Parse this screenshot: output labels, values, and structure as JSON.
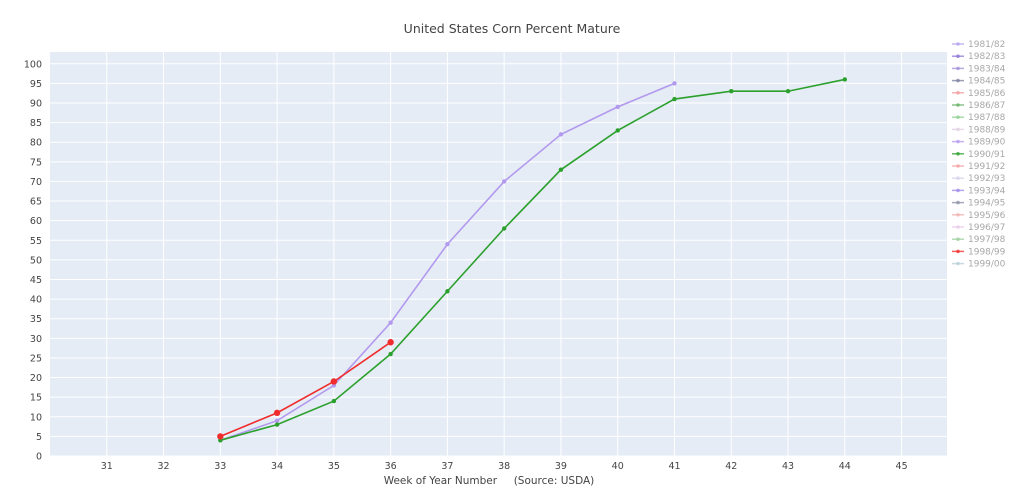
{
  "chart_data": {
    "type": "line",
    "title": "United States Corn Percent Mature",
    "xlabel": "Week of Year Number     (Source: USDA)",
    "ylabel": "",
    "xlim": [
      30,
      45.8
    ],
    "ylim": [
      0,
      103
    ],
    "xticks": [
      31,
      32,
      33,
      34,
      35,
      36,
      37,
      38,
      39,
      40,
      41,
      42,
      43,
      44,
      45
    ],
    "yticks": [
      0,
      5,
      10,
      15,
      20,
      25,
      30,
      35,
      40,
      45,
      50,
      55,
      60,
      65,
      70,
      75,
      80,
      85,
      90,
      95,
      100
    ],
    "grid": true,
    "legend_position": "right",
    "background": "#e5ecf6",
    "series": [
      {
        "name": "1981/82",
        "color": "#b59ff0",
        "visible": false,
        "x": [],
        "y": []
      },
      {
        "name": "1982/83",
        "color": "#8c73d6",
        "visible": false,
        "x": [],
        "y": []
      },
      {
        "name": "1983/84",
        "color": "#a08fd9",
        "visible": false,
        "x": [],
        "y": []
      },
      {
        "name": "1984/85",
        "color": "#7a7f9e",
        "visible": false,
        "x": [],
        "y": []
      },
      {
        "name": "1985/86",
        "color": "#f29a9a",
        "visible": false,
        "x": [],
        "y": []
      },
      {
        "name": "1986/87",
        "color": "#66b066",
        "visible": false,
        "x": [],
        "y": []
      },
      {
        "name": "1987/88",
        "color": "#8fcf8f",
        "visible": false,
        "x": [],
        "y": []
      },
      {
        "name": "1988/89",
        "color": "#e0d0e0",
        "visible": false,
        "x": [],
        "y": []
      },
      {
        "name": "1989/90",
        "color": "#b399ee",
        "visible": true,
        "x": [
          33,
          34,
          35,
          36,
          37,
          38,
          39,
          40,
          41
        ],
        "y": [
          4,
          9,
          18,
          34,
          54,
          70,
          82,
          89,
          95
        ]
      },
      {
        "name": "1990/91",
        "color": "#2ca02c",
        "visible": true,
        "x": [
          33,
          34,
          35,
          36,
          37,
          38,
          39,
          40,
          41,
          42,
          43,
          44
        ],
        "y": [
          4,
          8,
          14,
          26,
          42,
          58,
          73,
          83,
          91,
          93,
          93,
          96
        ]
      },
      {
        "name": "1991/92",
        "color": "#f4a0a0",
        "visible": false,
        "x": [],
        "y": []
      },
      {
        "name": "1992/93",
        "color": "#d8d0ec",
        "visible": false,
        "x": [],
        "y": []
      },
      {
        "name": "1993/94",
        "color": "#9e86e8",
        "visible": false,
        "x": [],
        "y": []
      },
      {
        "name": "1994/95",
        "color": "#8a8fa6",
        "visible": false,
        "x": [],
        "y": []
      },
      {
        "name": "1995/96",
        "color": "#f0b0b0",
        "visible": false,
        "x": [],
        "y": []
      },
      {
        "name": "1996/97",
        "color": "#e8c8e8",
        "visible": false,
        "x": [],
        "y": []
      },
      {
        "name": "1997/98",
        "color": "#9ccf9c",
        "visible": false,
        "x": [],
        "y": []
      },
      {
        "name": "1998/99",
        "color": "#f02c2c",
        "visible": true,
        "x": [
          33,
          34,
          35,
          36
        ],
        "y": [
          5,
          11,
          19,
          29
        ]
      },
      {
        "name": "1999/00",
        "color": "#b8d0d8",
        "visible": false,
        "x": [],
        "y": []
      }
    ]
  }
}
